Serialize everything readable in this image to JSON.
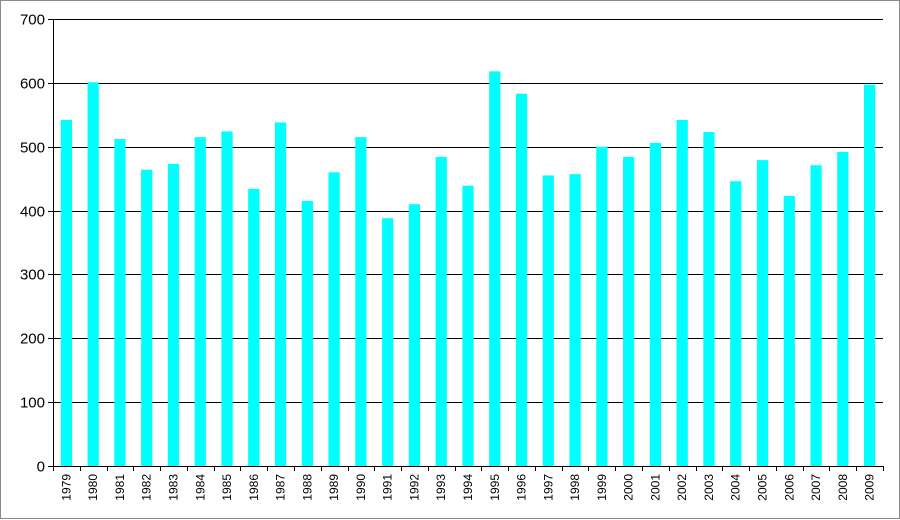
{
  "chart_data": {
    "type": "bar",
    "title": "",
    "xlabel": "",
    "ylabel": "",
    "ylim": [
      0,
      700
    ],
    "yticks": [
      0,
      100,
      200,
      300,
      400,
      500,
      600,
      700
    ],
    "grid": true,
    "bar_color": "#00FFFF",
    "categories": [
      "1979",
      "1980",
      "1981",
      "1982",
      "1983",
      "1984",
      "1985",
      "1986",
      "1987",
      "1988",
      "1989",
      "1990",
      "1991",
      "1992",
      "1993",
      "1994",
      "1995",
      "1996",
      "1997",
      "1998",
      "1999",
      "2000",
      "2001",
      "2002",
      "2003",
      "2004",
      "2005",
      "2006",
      "2007",
      "2008",
      "2009"
    ],
    "values": [
      542,
      601,
      512,
      464,
      473,
      515,
      524,
      434,
      538,
      415,
      460,
      515,
      388,
      410,
      484,
      439,
      618,
      583,
      455,
      457,
      500,
      484,
      506,
      542,
      523,
      446,
      479,
      423,
      471,
      492,
      597
    ]
  }
}
